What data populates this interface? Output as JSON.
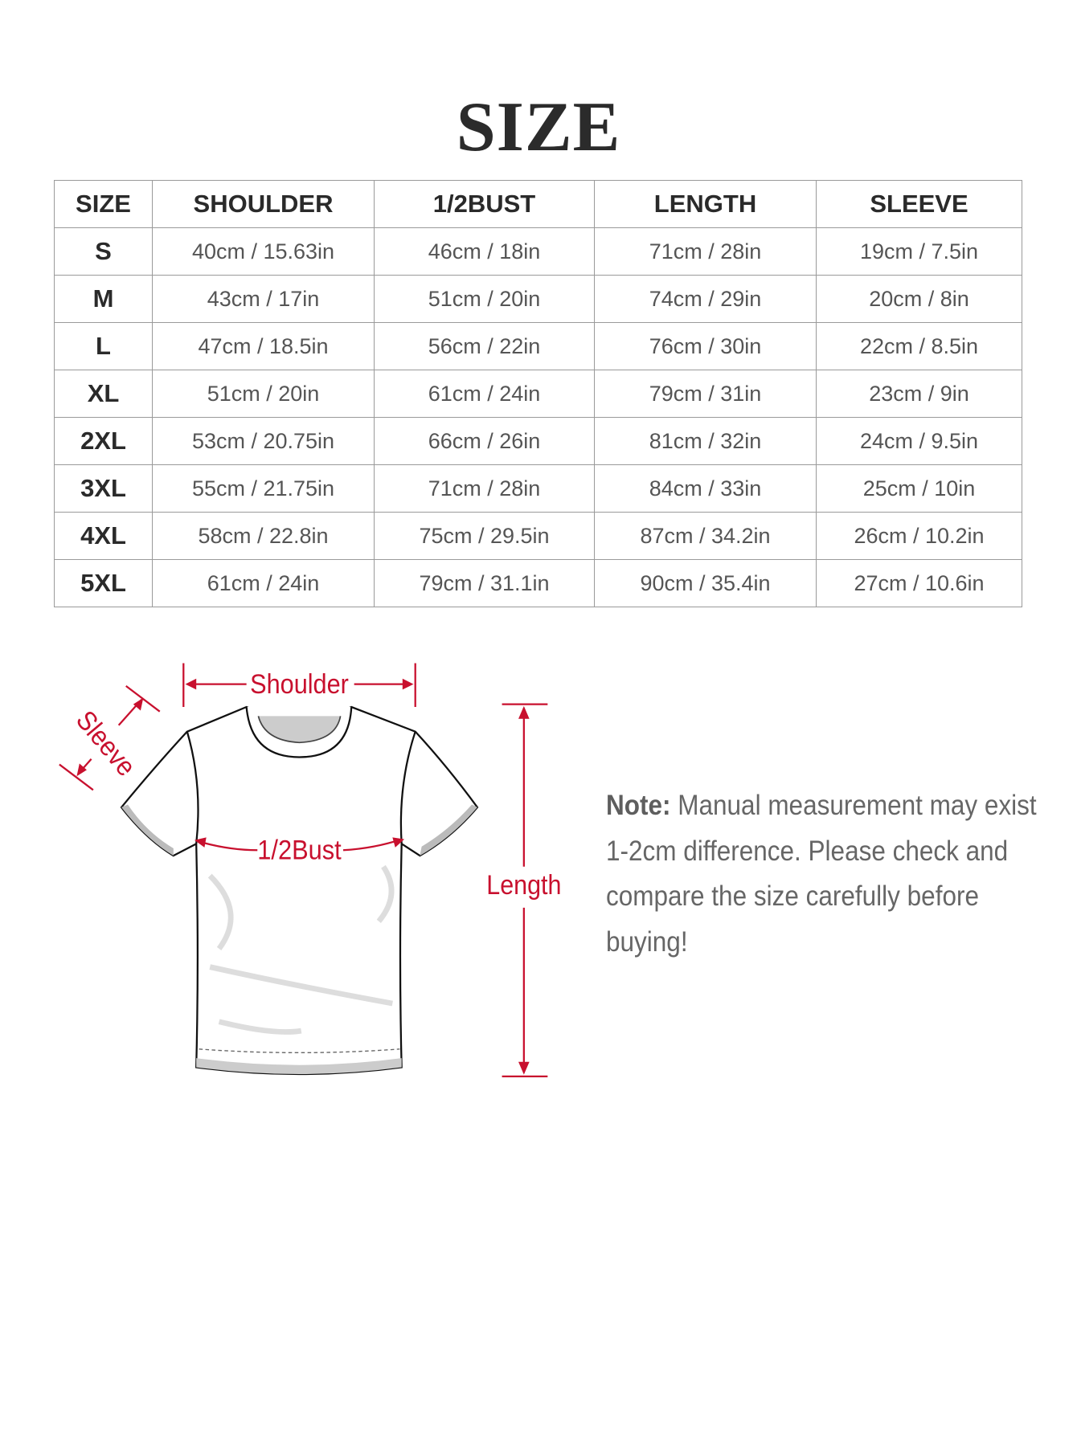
{
  "title": "SIZE",
  "table": {
    "headers": [
      "SIZE",
      "SHOULDER",
      "1/2BUST",
      "LENGTH",
      "SLEEVE"
    ],
    "rows": [
      [
        "S",
        "40cm / 15.63in",
        "46cm / 18in",
        "71cm / 28in",
        "19cm / 7.5in"
      ],
      [
        "M",
        "43cm / 17in",
        "51cm / 20in",
        "74cm / 29in",
        "20cm / 8in"
      ],
      [
        "L",
        "47cm / 18.5in",
        "56cm / 22in",
        "76cm / 30in",
        "22cm / 8.5in"
      ],
      [
        "XL",
        "51cm / 20in",
        "61cm / 24in",
        "79cm / 31in",
        "23cm / 9in"
      ],
      [
        "2XL",
        "53cm / 20.75in",
        "66cm / 26in",
        "81cm / 32in",
        "24cm / 9.5in"
      ],
      [
        "3XL",
        "55cm / 21.75in",
        "71cm / 28in",
        "84cm / 33in",
        "25cm / 10in"
      ],
      [
        "4XL",
        "58cm / 22.8in",
        "75cm / 29.5in",
        "87cm / 34.2in",
        "26cm / 10.2in"
      ],
      [
        "5XL",
        "61cm / 24in",
        "79cm / 31.1in",
        "90cm / 35.4in",
        "27cm / 10.6in"
      ]
    ]
  },
  "diagram": {
    "shoulder": "Shoulder",
    "sleeve": "Sleeve",
    "bust": "1/2Bust",
    "length": "Length",
    "accent_color": "#c8102e"
  },
  "note": {
    "label": "Note:",
    "text": "Manual measurement may exist 1-2cm difference. Please check and compare the size carefully before buying!"
  }
}
